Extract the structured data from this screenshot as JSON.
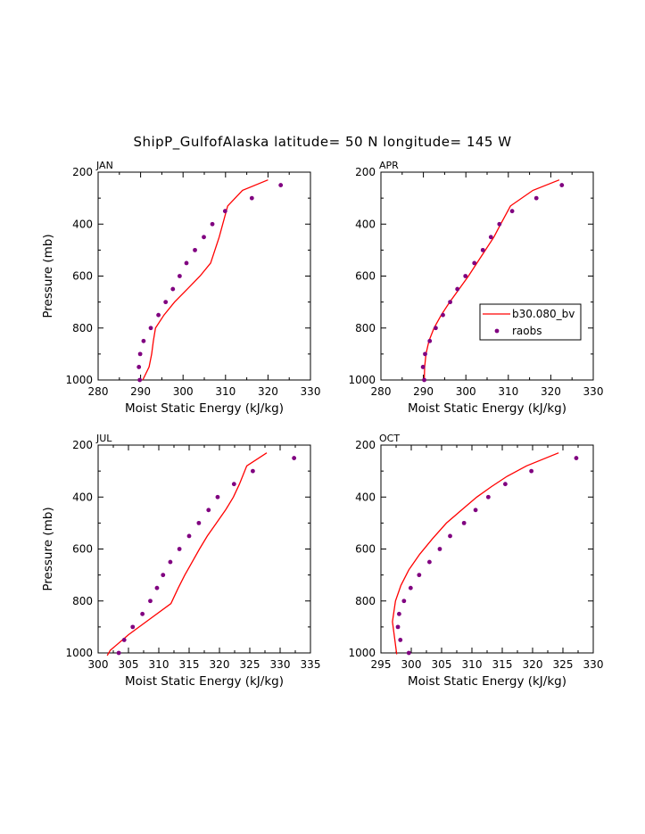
{
  "title": "ShipP_GulfofAlaska  latitude= 50 N longitude= 145 W",
  "legend": {
    "model_label": "b30.080_bv",
    "obs_label": "raobs"
  },
  "colors": {
    "model": "#ff0000",
    "obs": "#800080",
    "axis": "#000000"
  },
  "chart_data": [
    {
      "panel": "JAN",
      "type": "line+scatter",
      "xlabel": "Moist Static Energy (kJ/kg)",
      "ylabel": "Pressure (mb)",
      "xlim": [
        280,
        330
      ],
      "xticks": [
        280,
        290,
        300,
        310,
        320,
        330
      ],
      "ylim": [
        1000,
        200
      ],
      "yticks": [
        200,
        400,
        600,
        800,
        1000
      ],
      "model": {
        "name": "b30.080_bv",
        "x": [
          290.5,
          292.0,
          292.6,
          293.0,
          293.5,
          295.5,
          298.0,
          301.0,
          304.0,
          306.5,
          308.5,
          310.5,
          314.0,
          320.0
        ],
        "y": [
          1000,
          950,
          900,
          850,
          800,
          750,
          700,
          650,
          600,
          550,
          450,
          330,
          270,
          230
        ]
      },
      "obs": {
        "name": "raobs",
        "x": [
          289.8,
          289.6,
          289.9,
          290.7,
          292.4,
          294.2,
          295.9,
          297.6,
          299.2,
          300.8,
          302.8,
          304.9,
          306.9,
          309.9,
          316.2,
          323.0
        ],
        "y": [
          1000,
          950,
          900,
          850,
          800,
          750,
          700,
          650,
          600,
          550,
          500,
          450,
          400,
          350,
          300,
          250
        ]
      }
    },
    {
      "panel": "APR",
      "type": "line+scatter",
      "xlabel": "Moist Static Energy (kJ/kg)",
      "ylabel": "",
      "xlim": [
        280,
        330
      ],
      "xticks": [
        280,
        290,
        300,
        310,
        320,
        330
      ],
      "ylim": [
        1000,
        200
      ],
      "yticks": [
        200,
        400,
        600,
        800,
        1000
      ],
      "model": {
        "name": "b30.080_bv",
        "x": [
          290.2,
          290.3,
          290.6,
          291.3,
          292.5,
          294.2,
          296.2,
          298.4,
          300.6,
          302.6,
          304.6,
          306.6,
          308.2,
          310.5,
          315.8,
          322.0
        ],
        "y": [
          1000,
          950,
          900,
          850,
          800,
          750,
          700,
          650,
          600,
          550,
          500,
          450,
          400,
          330,
          270,
          230
        ]
      },
      "obs": {
        "name": "raobs",
        "x": [
          290.2,
          289.9,
          290.4,
          291.5,
          292.9,
          294.6,
          296.3,
          298.0,
          299.9,
          302.0,
          304.0,
          305.9,
          307.9,
          310.9,
          316.6,
          322.6
        ],
        "y": [
          1000,
          950,
          900,
          850,
          800,
          750,
          700,
          650,
          600,
          550,
          500,
          450,
          400,
          350,
          300,
          250
        ]
      }
    },
    {
      "panel": "JUL",
      "type": "line+scatter",
      "xlabel": "Moist Static Energy (kJ/kg)",
      "ylabel": "Pressure (mb)",
      "xlim": [
        300,
        335
      ],
      "xticks": [
        300,
        305,
        310,
        315,
        320,
        325,
        330,
        335
      ],
      "ylim": [
        1000,
        200
      ],
      "yticks": [
        200,
        400,
        600,
        800,
        1000
      ],
      "model": {
        "name": "b30.080_bv",
        "x": [
          301.5,
          302.0,
          305.0,
          308.5,
          312.0,
          313.2,
          314.3,
          315.5,
          316.7,
          318.0,
          319.5,
          321.0,
          322.3,
          323.3,
          324.5,
          327.8
        ],
        "y": [
          1010,
          990,
          930,
          870,
          810,
          750,
          700,
          650,
          600,
          550,
          500,
          450,
          400,
          350,
          280,
          230
        ]
      },
      "obs": {
        "name": "raobs",
        "x": [
          303.4,
          304.3,
          305.7,
          307.3,
          308.6,
          309.7,
          310.7,
          311.9,
          313.4,
          315.0,
          316.6,
          318.2,
          319.7,
          322.4,
          325.5,
          332.3
        ],
        "y": [
          1000,
          950,
          900,
          850,
          800,
          750,
          700,
          650,
          600,
          550,
          500,
          450,
          400,
          350,
          300,
          250
        ]
      }
    },
    {
      "panel": "OCT",
      "type": "line+scatter",
      "xlabel": "Moist Static Energy (kJ/kg)",
      "ylabel": "",
      "xlim": [
        295,
        330
      ],
      "xticks": [
        295,
        300,
        305,
        310,
        315,
        320,
        325,
        330
      ],
      "ylim": [
        1000,
        200
      ],
      "yticks": [
        200,
        400,
        600,
        800,
        1000
      ],
      "model": {
        "name": "b30.080_bv",
        "x": [
          297.6,
          297.3,
          296.9,
          297.4,
          298.3,
          299.6,
          301.4,
          303.5,
          305.8,
          308.3,
          310.8,
          313.2,
          315.8,
          319.0,
          324.3
        ],
        "y": [
          1005,
          950,
          880,
          800,
          740,
          680,
          620,
          560,
          500,
          450,
          400,
          360,
          320,
          280,
          230
        ]
      },
      "obs": {
        "name": "raobs",
        "x": [
          299.6,
          298.2,
          297.8,
          298.0,
          298.8,
          299.9,
          301.3,
          303.0,
          304.7,
          306.4,
          308.7,
          310.6,
          312.7,
          315.5,
          319.8,
          327.2
        ],
        "y": [
          1000,
          950,
          900,
          850,
          800,
          750,
          700,
          650,
          600,
          550,
          500,
          450,
          400,
          350,
          300,
          250
        ]
      }
    }
  ]
}
